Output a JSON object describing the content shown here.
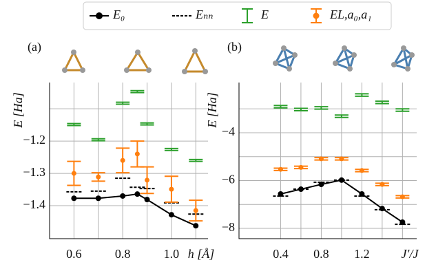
{
  "chart_data": [
    {
      "type": "line",
      "title": "(a)",
      "xlabel": "h [Å]",
      "ylabel": "E [Ha]",
      "xlim": [
        0.5,
        1.15
      ],
      "ylim": [
        -1.502,
        -1.019
      ],
      "xticks": [
        0.6,
        0.8,
        {
          "value": 1,
          "label": "1.0"
        }
      ],
      "yticks": [
        {
          "value": -1.4,
          "label": "−1.4"
        },
        {
          "value": -1.3,
          "label": "−1.3"
        },
        {
          "value": -1.2,
          "label": "−1.2"
        }
      ],
      "minor_grid_x": [
        0.7,
        0.9,
        1.1
      ],
      "minor_grid_y": [
        -1.1
      ],
      "grid": true,
      "x": [
        0.6,
        0.7,
        0.8,
        0.86,
        0.9,
        1.0,
        1.1
      ],
      "series": [
        {
          "name": "E₀",
          "style": "line",
          "color": "#000000",
          "values": [
            -1.377,
            -1.377,
            -1.37,
            -1.364,
            -1.381,
            -1.428,
            -1.462
          ]
        },
        {
          "name": "Eₙₙ",
          "style": "dash",
          "color": "#000000",
          "values": [
            -1.357,
            -1.355,
            -1.315,
            -1.343,
            -1.347,
            -1.391,
            -1.426
          ]
        },
        {
          "name": "E",
          "style": "errorbar",
          "color": "#2ca02c",
          "values": [
            -1.149,
            -1.196,
            -1.083,
            -1.047,
            -1.147,
            -1.226,
            -1.26
          ],
          "errors": [
            0.003,
            0.003,
            0.003,
            0.003,
            0.003,
            0.003,
            0.003
          ]
        },
        {
          "name": "EL,a₀,a₁",
          "style": "errorbar-point",
          "color": "#ff7f0e",
          "values": [
            -1.3,
            -1.311,
            -1.26,
            -1.24,
            -1.321,
            -1.349,
            -1.415
          ],
          "errors": [
            0.037,
            0.013,
            0.038,
            0.04,
            0.041,
            0.04,
            0.032
          ]
        }
      ]
    },
    {
      "type": "line",
      "title": "(b)",
      "xlabel": "J′/J",
      "ylabel": "E [Ha]",
      "xlim": [
        -0.01,
        1.74
      ],
      "ylim": [
        -8.43,
        -1.9
      ],
      "xticks": [
        0.4,
        0.8,
        1.2
      ],
      "yticks": [
        {
          "value": -8,
          "label": "−8"
        },
        {
          "value": -6,
          "label": "−6"
        },
        {
          "value": -4,
          "label": "−4"
        }
      ],
      "minor_grid_x": [
        0.6,
        1.0,
        1.4,
        1.6
      ],
      "minor_grid_y": [
        -7,
        -5,
        -3
      ],
      "grid": true,
      "x": [
        0.4,
        0.6,
        0.8,
        1.0,
        1.2,
        1.4,
        1.6
      ],
      "series": [
        {
          "style": "line",
          "color": "#000000",
          "values": [
            -6.56,
            -6.36,
            -6.16,
            -5.98,
            -6.56,
            -7.17,
            -7.74
          ]
        },
        {
          "style": "dash",
          "color": "#000000",
          "values": [
            -6.65,
            -6.36,
            -6.07,
            -5.98,
            -6.65,
            -7.22,
            -7.83
          ]
        },
        {
          "style": "errorbar",
          "color": "#2ca02c",
          "values": [
            -2.91,
            -3.03,
            -2.96,
            -3.31,
            -2.42,
            -2.73,
            -3.05
          ],
          "errors": [
            0.05,
            0.05,
            0.05,
            0.05,
            0.05,
            0.05,
            0.05
          ]
        },
        {
          "style": "errorbar-point",
          "color": "#ff7f0e",
          "values": [
            -5.53,
            -5.45,
            -5.09,
            -5.09,
            -5.58,
            -6.16,
            -6.68
          ],
          "errors": [
            0.05,
            0.05,
            0.05,
            0.05,
            0.05,
            0.05,
            0.05
          ]
        }
      ]
    }
  ]
}
